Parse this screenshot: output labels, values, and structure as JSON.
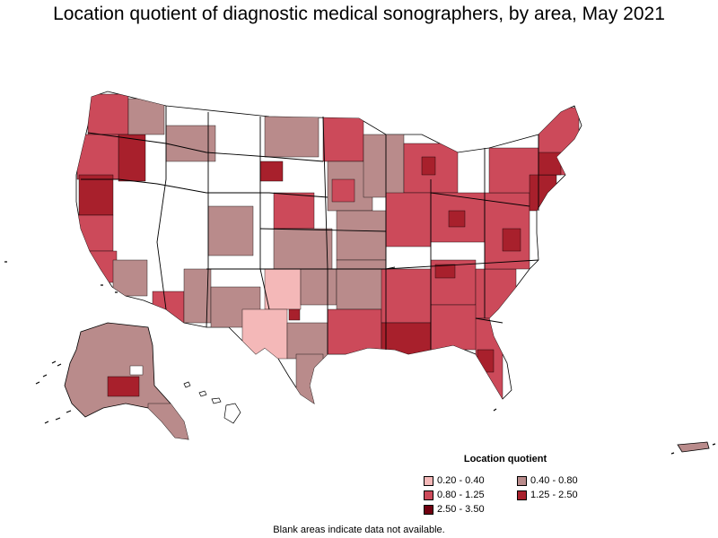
{
  "title": "Location quotient of diagnostic medical sonographers, by area, May 2021",
  "legend": {
    "title": "Location quotient",
    "items": [
      {
        "label": "0.20 - 0.40",
        "color": "#f4b8b8"
      },
      {
        "label": "0.40 - 0.80",
        "color": "#b98b8b"
      },
      {
        "label": "0.80 - 1.25",
        "color": "#cc4a5a"
      },
      {
        "label": "1.25 - 2.50",
        "color": "#a8202c"
      },
      {
        "label": "2.50 - 3.50",
        "color": "#700010"
      }
    ]
  },
  "footnote": "Blank areas indicate data not available.",
  "colors": {
    "no_data": "#ffffff",
    "border": "#000000"
  }
}
